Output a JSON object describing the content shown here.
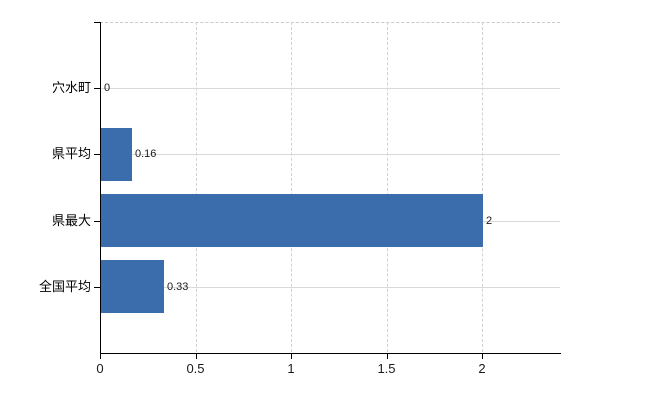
{
  "chart_data": {
    "type": "bar",
    "orientation": "horizontal",
    "title": "",
    "xlabel": "",
    "ylabel": "",
    "categories": [
      "穴水町",
      "県平均",
      "県最大",
      "全国平均"
    ],
    "values": [
      0,
      0.16,
      2,
      0.33
    ],
    "value_labels": [
      "0",
      "0.16",
      "2",
      "0.33"
    ],
    "xticks": [
      0,
      0.5,
      1,
      1.5,
      2
    ],
    "xtick_labels": [
      "0",
      "0.5",
      "1",
      "1.5",
      "2"
    ],
    "xlim": [
      0,
      2.41
    ],
    "grid": "horizontal solid at category centers, vertical dashed at x ticks, dashed top border",
    "legend": false,
    "colors": {
      "bar": "#3b6dad",
      "axis": "#000000",
      "h_gridline": "#d6dbd6",
      "v_gridline": "#cdd3cd",
      "top_border": "#c9c9c9",
      "text": "#1a1a1a",
      "background": "#ffffff"
    }
  }
}
